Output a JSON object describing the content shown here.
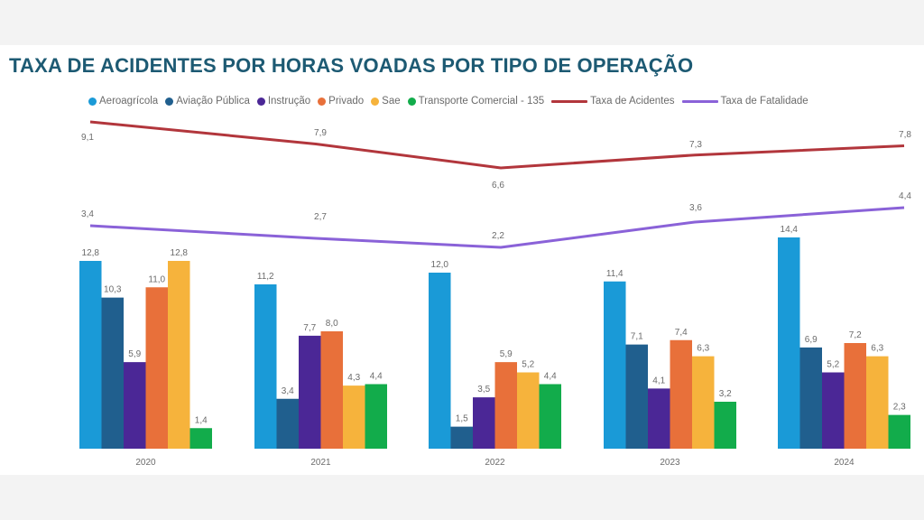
{
  "chart_data": {
    "type": "bar",
    "title": "TAXA DE ACIDENTES POR HORAS VOADAS POR TIPO DE OPERAÇÃO",
    "xlabel": "",
    "ylabel": "",
    "categories": [
      "2020",
      "2021",
      "2022",
      "2023",
      "2024"
    ],
    "series": [
      {
        "name": "Aeroagrícola",
        "kind": "bar",
        "color": "#1a9ad7",
        "values": [
          12.8,
          11.2,
          12.0,
          11.4,
          14.4
        ],
        "labels": [
          "12,8",
          "11,2",
          "12,0",
          "11,4",
          "14,4"
        ]
      },
      {
        "name": "Aviação Pública",
        "kind": "bar",
        "color": "#205f8e",
        "values": [
          10.3,
          3.4,
          1.5,
          7.1,
          6.9
        ],
        "labels": [
          "10,3",
          "3,4",
          "1,5",
          "7,1",
          "6,9"
        ]
      },
      {
        "name": "Instrução",
        "kind": "bar",
        "color": "#4b2796",
        "values": [
          5.9,
          7.7,
          3.5,
          4.1,
          5.2
        ],
        "labels": [
          "5,9",
          "7,7",
          "3,5",
          "4,1",
          "5,2"
        ]
      },
      {
        "name": "Privado",
        "kind": "bar",
        "color": "#e8703a",
        "values": [
          11.0,
          8.0,
          5.9,
          7.4,
          7.2
        ],
        "labels": [
          "11,0",
          "8,0",
          "5,9",
          "7,4",
          "7,2"
        ]
      },
      {
        "name": "Sae",
        "kind": "bar",
        "color": "#f6b33c",
        "values": [
          12.8,
          4.3,
          5.2,
          6.3,
          6.3
        ],
        "labels": [
          "12,8",
          "4,3",
          "5,2",
          "6,3",
          "6,3"
        ]
      },
      {
        "name": "Transporte Comercial - 135",
        "kind": "bar",
        "color": "#12ac4b",
        "values": [
          1.4,
          4.4,
          4.4,
          3.2,
          2.3
        ],
        "labels": [
          "1,4",
          "4,4",
          "4,4",
          "3,2",
          "2,3"
        ]
      },
      {
        "name": "Taxa de Acidentes",
        "kind": "line",
        "color": "#b2363c",
        "values": [
          9.1,
          7.9,
          6.6,
          7.3,
          7.8
        ],
        "labels": [
          "9,1",
          "7,9",
          "6,6",
          "7,3",
          "7,8"
        ]
      },
      {
        "name": "Taxa de Fatalidade",
        "kind": "line",
        "color": "#8a62d8",
        "values": [
          3.4,
          2.7,
          2.2,
          3.6,
          4.4
        ],
        "labels": [
          "3,4",
          "2,7",
          "2,2",
          "3,6",
          "4,4"
        ]
      }
    ],
    "grid": false,
    "legend_position": "top"
  }
}
